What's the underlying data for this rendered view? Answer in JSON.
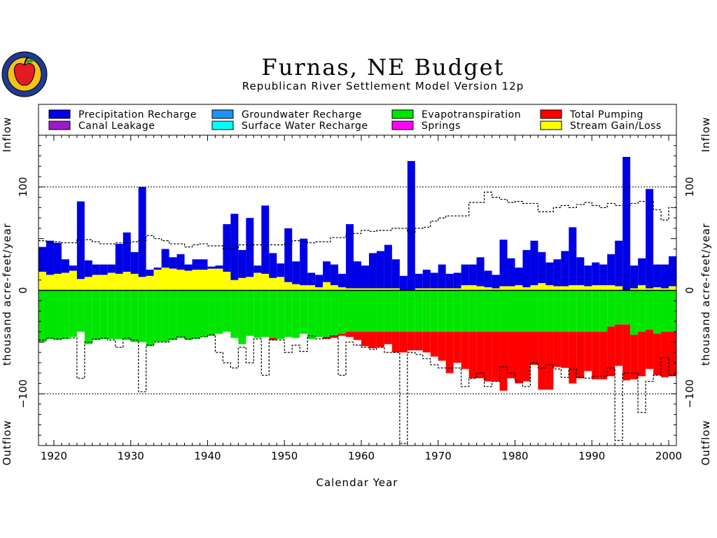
{
  "chart_data": {
    "type": "bar",
    "title": "Furnas, NE Budget",
    "subtitle": "Republican River Settlement Model Version 12p",
    "xlabel": "Calendar Year",
    "ylabel": "thousand acre-feet/year",
    "side_labels": {
      "top": "Inflow",
      "bottom": "Outflow"
    },
    "xlim": [
      1918,
      2001
    ],
    "ylim": [
      -150,
      150
    ],
    "x_ticks": [
      1920,
      1930,
      1940,
      1950,
      1960,
      1970,
      1980,
      1990,
      2000
    ],
    "y_ticks": [
      100,
      0,
      -100
    ],
    "y_tick_labels": [
      "100",
      "0",
      "−100"
    ],
    "grid": "dotted lines at +100 and -100",
    "legend_position": "top",
    "colors": {
      "Precipitation Recharge": "#0000e6",
      "Groundwater Recharge": "#1e90ff",
      "Surface Water Recharge": "#00ffff",
      "Canal Leakage": "#9b1cc4",
      "Springs": "#ff00ff",
      "Stream Gain/Loss": "#ffff00",
      "Evapotranspiration": "#00e600",
      "Total Pumping": "#ff0000"
    },
    "legend": [
      "Precipitation Recharge",
      "Groundwater Recharge",
      "Evapotranspiration",
      "Total Pumping",
      "Canal Leakage",
      "Surface Water Recharge",
      "Springs",
      "Stream Gain/Loss"
    ],
    "years": [
      1918,
      1919,
      1920,
      1921,
      1922,
      1923,
      1924,
      1925,
      1926,
      1927,
      1928,
      1929,
      1930,
      1931,
      1932,
      1933,
      1934,
      1935,
      1936,
      1937,
      1938,
      1939,
      1940,
      1941,
      1942,
      1943,
      1944,
      1945,
      1946,
      1947,
      1948,
      1949,
      1950,
      1951,
      1952,
      1953,
      1954,
      1955,
      1956,
      1957,
      1958,
      1959,
      1960,
      1961,
      1962,
      1963,
      1964,
      1965,
      1966,
      1967,
      1968,
      1969,
      1970,
      1971,
      1972,
      1973,
      1974,
      1975,
      1976,
      1977,
      1978,
      1979,
      1980,
      1981,
      1982,
      1983,
      1984,
      1985,
      1986,
      1987,
      1988,
      1989,
      1990,
      1991,
      1992,
      1993,
      1994,
      1995,
      1996,
      1997,
      1998,
      1999,
      2000
    ],
    "series": [
      {
        "name": "Stream Gain/Loss",
        "values": [
          18,
          15,
          16,
          17,
          19,
          11,
          13,
          15,
          15,
          17,
          16,
          18,
          16,
          13,
          14,
          20,
          22,
          21,
          20,
          19,
          20,
          20,
          21,
          21,
          18,
          10,
          12,
          13,
          17,
          16,
          12,
          13,
          8,
          6,
          5,
          5,
          3,
          8,
          5,
          3,
          2,
          2,
          2,
          2,
          2,
          2,
          2,
          -5,
          -3,
          2,
          2,
          2,
          2,
          2,
          2,
          5,
          5,
          4,
          3,
          2,
          4,
          4,
          5,
          3,
          5,
          7,
          5,
          4,
          4,
          5,
          5,
          4,
          5,
          5,
          5,
          4,
          0,
          2,
          5,
          2,
          3,
          2,
          4
        ]
      },
      {
        "name": "Precipitation Recharge",
        "values": [
          24,
          33,
          30,
          13,
          5,
          75,
          16,
          10,
          10,
          8,
          29,
          38,
          21,
          87,
          6,
          2,
          18,
          11,
          15,
          6,
          10,
          10,
          2,
          3,
          46,
          64,
          27,
          57,
          7,
          66,
          24,
          13,
          52,
          22,
          45,
          12,
          12,
          20,
          20,
          13,
          62,
          26,
          22,
          34,
          36,
          42,
          28,
          14,
          125,
          14,
          18,
          15,
          23,
          14,
          15,
          20,
          20,
          28,
          16,
          13,
          45,
          27,
          17,
          36,
          43,
          30,
          22,
          26,
          34,
          56,
          27,
          20,
          22,
          20,
          30,
          44,
          129,
          22,
          26,
          96,
          22,
          23,
          29
        ]
      },
      {
        "name": "Groundwater Recharge",
        "values": [
          0,
          0,
          0,
          0,
          0,
          0,
          0,
          0,
          0,
          0,
          0,
          0,
          0,
          0,
          0,
          0,
          0,
          0,
          0,
          0,
          0,
          0,
          0,
          0,
          0,
          0,
          0,
          0,
          0,
          0,
          0,
          0,
          0,
          0,
          0,
          0,
          0,
          0,
          0,
          0,
          0,
          0,
          0,
          0,
          0,
          0,
          0,
          0,
          0,
          0,
          0,
          0,
          0,
          0,
          0,
          0,
          0,
          0,
          0,
          0,
          0,
          0,
          0,
          0,
          0,
          0,
          0,
          0,
          0,
          0,
          0,
          0,
          0,
          0,
          0,
          0,
          0,
          0,
          0,
          0,
          0,
          0,
          0
        ]
      },
      {
        "name": "Surface Water Recharge",
        "values": [
          0,
          0,
          0,
          0,
          0,
          0,
          0,
          0,
          0,
          0,
          0,
          0,
          0,
          0,
          0,
          0,
          0,
          0,
          0,
          0,
          0,
          0,
          0,
          0,
          0,
          0,
          0,
          0,
          0,
          0,
          0,
          0,
          0,
          0,
          0,
          0,
          0,
          0,
          0,
          0,
          0,
          0,
          0,
          0,
          0,
          0,
          0,
          0,
          0,
          0,
          0,
          0,
          0,
          0,
          0,
          0,
          0,
          0,
          0,
          0,
          0,
          0,
          0,
          0,
          0,
          0,
          0,
          0,
          0,
          0,
          0,
          0,
          0,
          0,
          0,
          0,
          0,
          0,
          0,
          0,
          0,
          0,
          0
        ]
      },
      {
        "name": "Canal Leakage",
        "values": [
          0,
          0,
          0,
          0,
          0,
          0,
          0,
          0,
          0,
          0,
          0,
          0,
          0,
          0,
          0,
          0,
          0,
          0,
          0,
          0,
          0,
          0,
          0,
          0,
          0,
          0,
          0,
          0,
          0,
          0,
          0,
          0,
          0,
          0,
          0,
          0,
          0,
          0,
          0,
          0,
          0,
          0,
          0,
          0,
          0,
          0,
          0,
          0,
          0,
          0,
          0,
          0,
          0,
          0,
          0,
          0,
          0,
          0,
          0,
          0,
          0,
          0,
          0,
          0,
          0,
          0,
          0,
          0,
          0,
          0,
          0,
          0,
          0,
          0,
          0,
          0,
          0,
          0,
          0,
          0,
          0,
          0,
          0
        ]
      },
      {
        "name": "Springs",
        "values": [
          0,
          0,
          0,
          0,
          0,
          0,
          0,
          0,
          0,
          0,
          0,
          0,
          0,
          0,
          0,
          0,
          0,
          0,
          0,
          0,
          0,
          0,
          0,
          0,
          0,
          0,
          0,
          0,
          0,
          0,
          0,
          0,
          0,
          0,
          0,
          0,
          0,
          0,
          0,
          0,
          0,
          0,
          0,
          0,
          0,
          0,
          0,
          0,
          0,
          0,
          0,
          0,
          0,
          0,
          0,
          0,
          0,
          0,
          0,
          0,
          0,
          0,
          0,
          0,
          0,
          0,
          0,
          0,
          0,
          0,
          0,
          0,
          0,
          0,
          0,
          0,
          0,
          0,
          0,
          0,
          0,
          0,
          0
        ]
      },
      {
        "name": "Evapotranspiration",
        "values": [
          -50,
          -47,
          -48,
          -47,
          -45,
          -40,
          -52,
          -48,
          -47,
          -47,
          -47,
          -48,
          -50,
          -50,
          -54,
          -50,
          -50,
          -48,
          -46,
          -48,
          -47,
          -45,
          -44,
          -42,
          -40,
          -46,
          -52,
          -44,
          -46,
          -45,
          -46,
          -47,
          -45,
          -46,
          -42,
          -47,
          -45,
          -45,
          -44,
          -42,
          -40,
          -40,
          -40,
          -40,
          -40,
          -40,
          -40,
          -40,
          -40,
          -40,
          -40,
          -40,
          -40,
          -40,
          -40,
          -40,
          -40,
          -40,
          -40,
          -40,
          -40,
          -40,
          -40,
          -40,
          -40,
          -40,
          -40,
          -40,
          -40,
          -40,
          -40,
          -40,
          -40,
          -40,
          -35,
          -33,
          -33,
          -43,
          -40,
          -38,
          -42,
          -40,
          -40
        ]
      },
      {
        "name": "Total Pumping",
        "values": [
          0,
          0,
          0,
          0,
          0,
          0,
          0,
          0,
          0,
          0,
          0,
          0,
          0,
          0,
          0,
          0,
          0,
          0,
          0,
          0,
          0,
          0,
          0,
          0,
          0,
          0,
          0,
          0,
          0,
          0,
          -2,
          0,
          0,
          0,
          0,
          0,
          0,
          -2,
          -2,
          -2,
          -5,
          -8,
          -14,
          -16,
          -15,
          -12,
          -20,
          -20,
          -18,
          -18,
          -20,
          -24,
          -28,
          -40,
          -30,
          -36,
          -45,
          -45,
          -48,
          -48,
          -57,
          -45,
          -50,
          -48,
          -32,
          -56,
          -56,
          -34,
          -35,
          -50,
          -45,
          -38,
          -46,
          -46,
          -48,
          -40,
          -54,
          -43,
          -43,
          -38,
          -40,
          -44,
          -43
        ]
      },
      {
        "name": "Total Inflow (dotted)",
        "values": [
          48,
          47,
          47,
          46,
          46,
          49,
          49,
          47,
          45,
          45,
          46,
          46,
          47,
          48,
          53,
          50,
          48,
          45,
          45,
          42,
          44,
          45,
          43,
          43,
          40,
          40,
          44,
          44,
          44,
          44,
          44,
          44,
          45,
          48,
          47,
          46,
          47,
          47,
          51,
          51,
          55,
          55,
          58,
          57,
          58,
          58,
          60,
          60,
          56,
          60,
          61,
          67,
          70,
          72,
          72,
          72,
          85,
          85,
          95,
          90,
          88,
          85,
          86,
          84,
          84,
          76,
          76,
          80,
          82,
          80,
          83,
          85,
          82,
          80,
          84,
          82,
          82,
          84,
          86,
          86,
          78,
          68,
          80
        ]
      },
      {
        "name": "Total Outflow (dotted)",
        "values": [
          -48,
          -46,
          -47,
          -46,
          -46,
          -85,
          -50,
          -47,
          -46,
          -48,
          -55,
          -46,
          -48,
          -98,
          -53,
          -50,
          -50,
          -47,
          -45,
          -47,
          -46,
          -45,
          -43,
          -60,
          -70,
          -75,
          -55,
          -70,
          -47,
          -82,
          -48,
          -48,
          -60,
          -53,
          -59,
          -44,
          -47,
          -46,
          -44,
          -82,
          -50,
          -53,
          -55,
          -57,
          -55,
          -60,
          -60,
          -148,
          -60,
          -62,
          -66,
          -72,
          -75,
          -75,
          -75,
          -93,
          -85,
          -80,
          -93,
          -88,
          -74,
          -80,
          -88,
          -93,
          -70,
          -75,
          -72,
          -76,
          -84,
          -76,
          -84,
          -85,
          -83,
          -83,
          -75,
          -145,
          -80,
          -80,
          -118,
          -88,
          -82,
          -65,
          -82
        ]
      }
    ]
  }
}
